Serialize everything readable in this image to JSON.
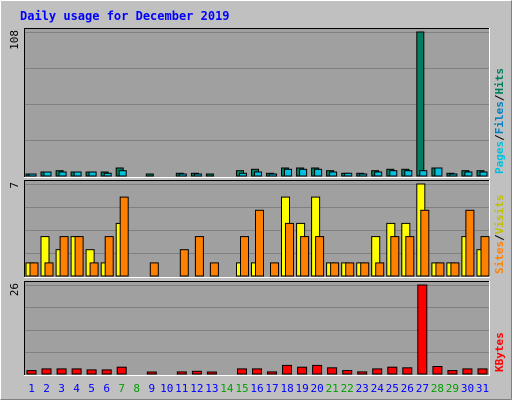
{
  "chart_data": {
    "type": "bar",
    "title": "Daily usage for December 2019",
    "categories": [
      "1",
      "2",
      "3",
      "4",
      "5",
      "6",
      "7",
      "8",
      "9",
      "10",
      "11",
      "12",
      "13",
      "14",
      "15",
      "16",
      "17",
      "18",
      "19",
      "20",
      "21",
      "22",
      "23",
      "24",
      "25",
      "26",
      "27",
      "28",
      "29",
      "30",
      "31"
    ],
    "weekend_days": [
      7,
      8,
      14,
      15,
      21,
      22,
      28,
      29
    ],
    "panels": [
      {
        "name": "hits-files-pages",
        "axis_max_label": "108",
        "ylim": [
          0,
          108
        ],
        "legend": [
          "Pages",
          "/",
          "Files",
          "/",
          "Hits"
        ],
        "series": [
          {
            "name": "Hits",
            "color": "#008060",
            "values": [
              1,
              3,
              4,
              3,
              3,
              3,
              6,
              0,
              1,
              0,
              2,
              2,
              1,
              0,
              4,
              5,
              2,
              6,
              6,
              6,
              4,
              2,
              2,
              4,
              5,
              5,
              108,
              6,
              2,
              4,
              4
            ]
          },
          {
            "name": "Files",
            "color": "#00c0e0",
            "values": [
              1,
              3,
              3,
              3,
              3,
              2,
              4,
              0,
              0,
              0,
              1,
              1,
              0,
              0,
              2,
              3,
              1,
              5,
              5,
              5,
              3,
              2,
              1,
              3,
              4,
              4,
              4,
              6,
              1,
              3,
              3
            ]
          },
          {
            "name": "Pages",
            "color": "#00c0e0",
            "values": [
              0,
              0,
              0,
              0,
              0,
              0,
              0,
              0,
              0,
              0,
              0,
              0,
              0,
              0,
              0,
              0,
              0,
              0,
              0,
              0,
              0,
              0,
              0,
              0,
              0,
              0,
              0,
              0,
              0,
              0,
              0
            ]
          }
        ]
      },
      {
        "name": "visits-sites",
        "axis_max_label": "7",
        "ylim": [
          0,
          7
        ],
        "legend": [
          "Sites",
          "/",
          "Visits"
        ],
        "series": [
          {
            "name": "Visits",
            "color": "#ffff00",
            "values": [
              1,
              3,
              2,
              3,
              2,
              1,
              4,
              0,
              0,
              0,
              0,
              0,
              0,
              0,
              1,
              1,
              0,
              6,
              4,
              6,
              1,
              1,
              1,
              3,
              4,
              4,
              7,
              1,
              1,
              3,
              2
            ]
          },
          {
            "name": "Sites",
            "color": "#ff8000",
            "values": [
              1,
              1,
              3,
              3,
              1,
              3,
              6,
              0,
              1,
              0,
              2,
              3,
              1,
              0,
              3,
              5,
              1,
              4,
              3,
              3,
              1,
              1,
              1,
              1,
              3,
              3,
              5,
              1,
              1,
              5,
              3
            ]
          }
        ]
      },
      {
        "name": "kbytes",
        "axis_max_label": "26",
        "ylim": [
          0,
          26
        ],
        "legend": [
          "KBytes"
        ],
        "series": [
          {
            "name": "KBytes",
            "color": "#ff0000",
            "values": [
              1,
              1.5,
              1.5,
              1.5,
              1.2,
              1.2,
              2,
              0,
              0.3,
              0,
              0.6,
              0.8,
              0.4,
              0,
              1.5,
              1.5,
              0.6,
              2.5,
              2,
              2.5,
              1.8,
              1,
              0.6,
              1.5,
              2,
              1.8,
              26,
              2.2,
              1,
              1.5,
              1.5
            ]
          }
        ]
      }
    ]
  },
  "colors": {
    "frame_outer": "#c0c0c0",
    "plot_bg": "#a0a0a0",
    "title": "#0000ff",
    "weekday_label": "#0000ff",
    "weekend_label": "#00a000",
    "pages_legend": "#00c0e0",
    "files_legend": "#0080c0",
    "hits_legend": "#008060",
    "sites_legend": "#ff8000",
    "visits_legend": "#c0c000",
    "kbytes_legend": "#ff0000"
  }
}
